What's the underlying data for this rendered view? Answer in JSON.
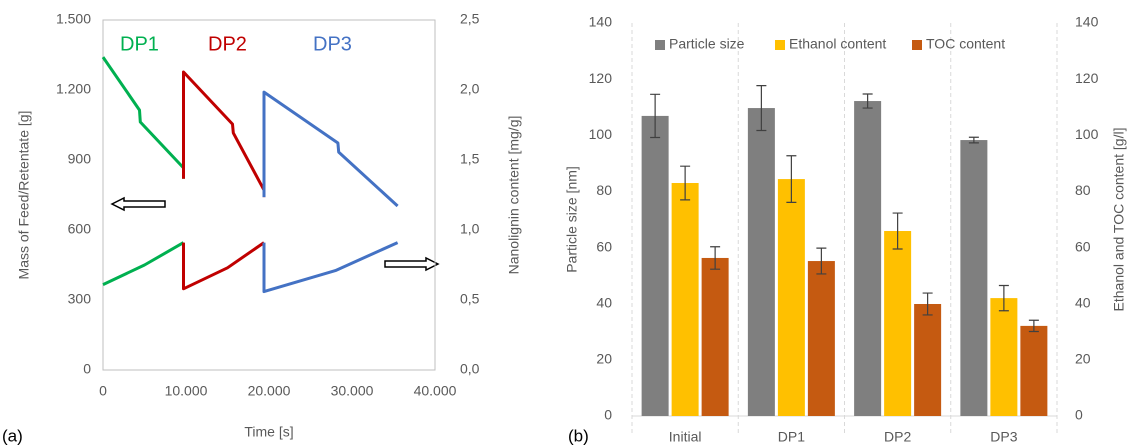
{
  "chart_data": [
    {
      "type": "line",
      "panel_label": "(a)",
      "x_label": "Time [s]",
      "y_label": "Mass of Feed/Retentate [g]",
      "y2_label": "Nanolignin content [mg/g]",
      "xlim": [
        0,
        40000
      ],
      "xticks": [
        0,
        {
          "value": 10000,
          "label": "10.000"
        },
        {
          "value": 20000,
          "label": "20.000"
        },
        {
          "value": 30000,
          "label": "30.000"
        },
        {
          "value": 40000,
          "label": "40.000"
        }
      ],
      "ylim": [
        0,
        1500
      ],
      "yticks": [
        0,
        300,
        600,
        900,
        {
          "value": 1200,
          "label": "1.200"
        },
        {
          "value": 1500,
          "label": "1.500"
        }
      ],
      "y2lim": [
        0,
        2.5
      ],
      "y2ticks": [
        {
          "value": 0,
          "label": "0,0"
        },
        {
          "value": 0.5,
          "label": "0,5"
        },
        {
          "value": 1,
          "label": "1,0"
        },
        {
          "value": 1.5,
          "label": "1,5"
        },
        {
          "value": 2,
          "label": "2,0"
        },
        {
          "value": 2.5,
          "label": "2,5"
        }
      ],
      "annotations": [
        {
          "text": "DP1",
          "color": "#00b050"
        },
        {
          "text": "DP2",
          "color": "#c00000"
        },
        {
          "text": "DP3",
          "color": "#4472c4"
        }
      ],
      "series": [
        {
          "color": "#00b050",
          "x": [
            0,
            4400,
            4500,
            9700,
            9700
          ],
          "values": [
            1341,
            1114,
            1063,
            866,
            820
          ]
        },
        {
          "color": "#c00000",
          "x": [
            9700,
            9700,
            15600,
            15700,
            19400,
            19400
          ],
          "values": [
            820,
            1277,
            1054,
            1016,
            771,
            741
          ]
        },
        {
          "color": "#4472c4",
          "x": [
            19400,
            19400,
            28300,
            28400,
            35500
          ],
          "values": [
            741,
            1191,
            973,
            934,
            703
          ]
        },
        {
          "color": "#00b050",
          "axis": "y2",
          "x": [
            0,
            5000,
            9700
          ],
          "values": [
            0.61,
            0.75,
            0.91
          ]
        },
        {
          "color": "#c00000",
          "axis": "y2",
          "x": [
            9700,
            9700,
            15000,
            19400
          ],
          "values": [
            0.91,
            0.58,
            0.73,
            0.91
          ]
        },
        {
          "color": "#4472c4",
          "axis": "y2",
          "x": [
            19400,
            19400,
            28000,
            35500
          ],
          "values": [
            0.91,
            0.56,
            0.71,
            0.91
          ]
        }
      ]
    },
    {
      "type": "bar",
      "panel_label": "(b)",
      "y_label": "Particle size [nm]",
      "y2_label": "Ethanol and TOC content [g/l]",
      "categories": [
        "Initial",
        "DP1",
        "DP2",
        "DP3"
      ],
      "ylim": [
        0,
        140
      ],
      "yticks": [
        0,
        20,
        40,
        60,
        80,
        100,
        120,
        140
      ],
      "y2lim": [
        0,
        140
      ],
      "y2ticks": [
        0,
        20,
        40,
        60,
        80,
        100,
        120,
        140
      ],
      "series": [
        {
          "name": "Particle size",
          "color": "#7f7f7f",
          "values": [
            106.9,
            109.7,
            112.2,
            98.3
          ],
          "errors": [
            7.7,
            8,
            2.5,
            1
          ]
        },
        {
          "name": "Ethanol content",
          "color": "#ffc000",
          "axis": "y2",
          "values": [
            83,
            84.4,
            65.9,
            42
          ],
          "errors": [
            6,
            8.3,
            6.4,
            4.5
          ]
        },
        {
          "name": "TOC content",
          "color": "#c55a11",
          "axis": "y2",
          "values": [
            56.3,
            55.2,
            39.9,
            32.1
          ],
          "errors": [
            4,
            4.6,
            3.9,
            2
          ]
        }
      ]
    }
  ]
}
